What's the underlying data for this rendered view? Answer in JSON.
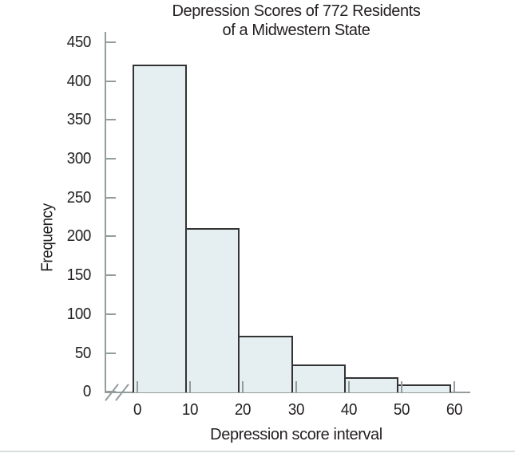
{
  "figure": {
    "title_line1": "Depression Scores of 772 Residents",
    "title_line2": "of a Midwestern State",
    "ylabel": "Frequency",
    "xlabel": "Depression score interval"
  },
  "chart_data": {
    "type": "bar",
    "subtype": "histogram",
    "title": "Depression Scores of 772 Residents of a Midwestern State",
    "xlabel": "Depression score interval",
    "ylabel": "Frequency",
    "bin_edges": [
      0,
      10,
      20,
      30,
      40,
      50,
      60
    ],
    "categories": [
      "0-10",
      "10-20",
      "20-30",
      "30-40",
      "40-50",
      "50-60"
    ],
    "values": [
      422,
      212,
      73,
      36,
      19,
      10
    ],
    "total_n": 772,
    "x_ticks": [
      0,
      10,
      20,
      30,
      40,
      50,
      60
    ],
    "y_ticks": [
      450,
      400,
      350,
      300,
      250,
      200,
      150,
      100,
      50,
      0
    ],
    "ylim": [
      0,
      450
    ],
    "xlim": [
      0,
      60
    ],
    "x_axis_break": true,
    "grid": false,
    "legend_position": "none",
    "colors": {
      "bar_fill": "#e5eef0",
      "bar_border": "#333333",
      "axis": "#939c9c",
      "text": "#231f20",
      "background": "#ffffff"
    }
  }
}
